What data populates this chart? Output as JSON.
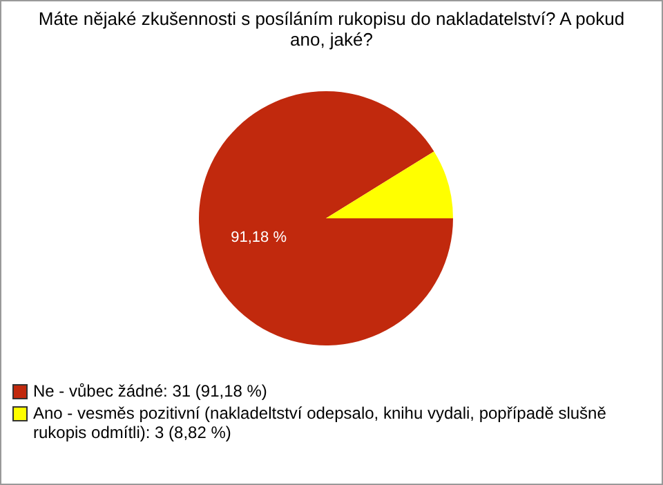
{
  "chart_data": {
    "type": "pie",
    "title": "Máte nějaké zkušennosti s posíláním rukopisu do nakladatelství? A pokud ano, jaké?",
    "categories": [
      "Ne - vůbec žádné: 31 (91,18 %)",
      "Ano - vesměs pozitivní (nakladeltství odepsalo, knihu vydali, popřípadě slušně rukopis odmítli): 3 (8,82 %)"
    ],
    "values": [
      91.18,
      8.82
    ],
    "colors": [
      "#c1290d",
      "#ffff00"
    ],
    "value_labels": [
      "91,18 %",
      null
    ],
    "legend": "bottom left"
  }
}
